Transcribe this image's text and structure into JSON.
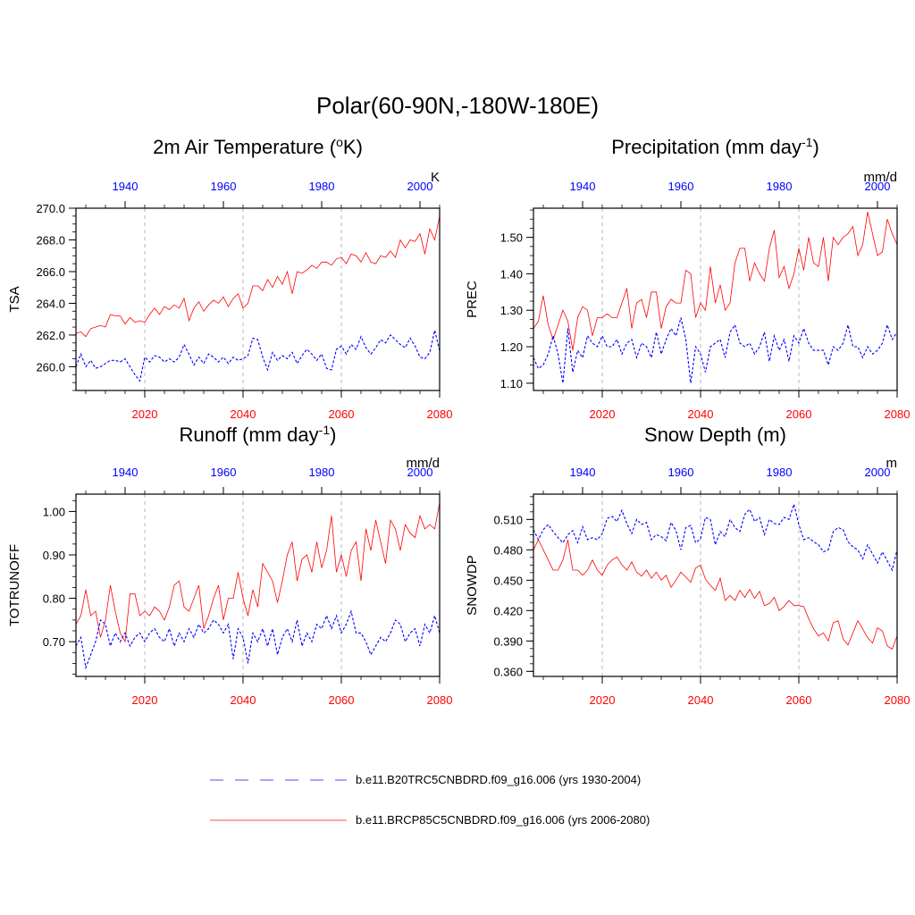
{
  "title": "Polar(60-90N,-180W-180E)",
  "colors": {
    "future": "#ff0000",
    "hist": "#0000ff",
    "grid": "#b4b4b4",
    "axis": "#000000"
  },
  "legend": [
    {
      "label": "b.e11.B20TRC5CNBDRD.f09_g16.006 (yrs 1930-2004)",
      "series": "hist"
    },
    {
      "label": "b.e11.BRCP85C5CNBDRD.f09_g16.006 (yrs 2006-2080)",
      "series": "future"
    }
  ],
  "chart_data": [
    {
      "type": "line",
      "title": "2m Air Temperature (°K)",
      "title_main": "2m Air Temperature (",
      "title_sup": "o",
      "title_end": "K)",
      "ylabel": "TSA",
      "units": "K",
      "ylim": [
        258.5,
        270.0
      ],
      "yticks": [
        260.0,
        262.0,
        264.0,
        266.0,
        268.0,
        270.0
      ],
      "ytick_labels": [
        "260.0",
        "262.0",
        "264.0",
        "266.0",
        "268.0",
        "270.0"
      ],
      "x_bottom_range": [
        2006,
        2080
      ],
      "x_bottom_ticks": [
        "2020",
        "2040",
        "2060",
        "2080"
      ],
      "x_top_range": [
        1930,
        2004
      ],
      "x_top_ticks": [
        "1940",
        "1960",
        "1980",
        "2000"
      ],
      "series": [
        {
          "name": "b.e11.BRCP85C5CNBDRD.f09_g16.006 (yrs 2006-2080)",
          "key": "future",
          "x_start": 2006,
          "values": [
            262.1,
            262.2,
            261.9,
            262.4,
            262.5,
            262.6,
            262.5,
            263.3,
            263.2,
            263.2,
            262.7,
            263.1,
            262.8,
            262.9,
            262.8,
            263.3,
            263.7,
            263.3,
            263.8,
            263.6,
            263.9,
            263.7,
            264.3,
            262.9,
            263.7,
            264.1,
            263.5,
            263.9,
            264.2,
            264.0,
            264.4,
            263.8,
            264.3,
            264.6,
            263.7,
            264.0,
            265.1,
            265.1,
            264.8,
            265.5,
            265.0,
            265.7,
            265.2,
            266.0,
            264.6,
            266.0,
            265.9,
            266.1,
            266.4,
            266.2,
            266.6,
            266.6,
            266.4,
            266.8,
            266.9,
            266.5,
            267.1,
            267.0,
            266.6,
            267.2,
            266.6,
            266.5,
            267.0,
            266.9,
            267.3,
            266.9,
            268.0,
            267.5,
            268.0,
            267.9,
            268.4,
            267.1,
            268.7,
            268.0,
            269.5
          ]
        },
        {
          "name": "b.e11.B20TRC5CNBDRD.f09_g16.006 (yrs 1930-2004)",
          "key": "hist",
          "x_start": 1930,
          "values": [
            260.0,
            260.8,
            260.0,
            260.4,
            259.9,
            260.0,
            260.2,
            260.4,
            260.4,
            260.3,
            260.5,
            260.0,
            259.5,
            259.1,
            260.6,
            260.3,
            260.7,
            260.6,
            260.3,
            260.5,
            260.3,
            260.6,
            261.4,
            260.8,
            260.1,
            260.6,
            260.2,
            260.8,
            260.6,
            260.3,
            260.6,
            260.2,
            260.6,
            260.4,
            260.5,
            260.7,
            261.8,
            261.7,
            260.6,
            259.8,
            260.9,
            260.4,
            260.7,
            260.5,
            260.9,
            260.2,
            260.7,
            261.1,
            260.8,
            260.4,
            260.8,
            259.9,
            259.8,
            261.1,
            261.3,
            260.8,
            261.4,
            261.1,
            261.9,
            261.2,
            260.8,
            261.2,
            261.7,
            261.5,
            262.0,
            261.7,
            261.4,
            261.2,
            261.8,
            261.3,
            260.6,
            260.5,
            260.9,
            262.3,
            261.0
          ]
        }
      ]
    },
    {
      "type": "line",
      "title": "Precipitation (mm day-1)",
      "title_main": "Precipitation (mm day",
      "title_sup": "-1",
      "title_end": ")",
      "ylabel": "PREC",
      "units": "mm/d",
      "ylim": [
        1.08,
        1.58
      ],
      "yticks": [
        1.1,
        1.2,
        1.3,
        1.4,
        1.5
      ],
      "ytick_labels": [
        "1.10",
        "1.20",
        "1.30",
        "1.40",
        "1.50"
      ],
      "x_bottom_range": [
        2006,
        2080
      ],
      "x_bottom_ticks": [
        "2020",
        "2040",
        "2060",
        "2080"
      ],
      "x_top_range": [
        1930,
        2004
      ],
      "x_top_ticks": [
        "1940",
        "1960",
        "1980",
        "2000"
      ],
      "series": [
        {
          "name": "b.e11.BRCP85C5CNBDRD.f09_g16.006 (yrs 2006-2080)",
          "key": "future",
          "x_start": 2006,
          "values": [
            1.25,
            1.27,
            1.34,
            1.26,
            1.22,
            1.26,
            1.3,
            1.27,
            1.19,
            1.28,
            1.31,
            1.3,
            1.23,
            1.28,
            1.28,
            1.29,
            1.28,
            1.28,
            1.32,
            1.36,
            1.25,
            1.32,
            1.33,
            1.28,
            1.35,
            1.35,
            1.25,
            1.31,
            1.33,
            1.32,
            1.32,
            1.41,
            1.4,
            1.28,
            1.32,
            1.3,
            1.42,
            1.32,
            1.37,
            1.3,
            1.32,
            1.43,
            1.47,
            1.47,
            1.38,
            1.43,
            1.4,
            1.38,
            1.47,
            1.52,
            1.39,
            1.42,
            1.36,
            1.4,
            1.47,
            1.41,
            1.5,
            1.43,
            1.42,
            1.5,
            1.38,
            1.5,
            1.48,
            1.5,
            1.51,
            1.53,
            1.45,
            1.48,
            1.57,
            1.51,
            1.45,
            1.46,
            1.55,
            1.51,
            1.48
          ]
        },
        {
          "name": "b.e11.B20TRC5CNBDRD.f09_g16.006 (yrs 1930-2004)",
          "key": "hist",
          "x_start": 1930,
          "values": [
            1.17,
            1.14,
            1.15,
            1.18,
            1.23,
            1.18,
            1.1,
            1.25,
            1.13,
            1.19,
            1.17,
            1.23,
            1.21,
            1.2,
            1.23,
            1.2,
            1.2,
            1.22,
            1.18,
            1.21,
            1.22,
            1.17,
            1.21,
            1.2,
            1.17,
            1.24,
            1.18,
            1.22,
            1.25,
            1.23,
            1.28,
            1.22,
            1.1,
            1.2,
            1.18,
            1.13,
            1.2,
            1.21,
            1.22,
            1.17,
            1.24,
            1.26,
            1.21,
            1.2,
            1.21,
            1.18,
            1.2,
            1.24,
            1.16,
            1.23,
            1.19,
            1.22,
            1.16,
            1.23,
            1.21,
            1.25,
            1.21,
            1.19,
            1.19,
            1.19,
            1.15,
            1.2,
            1.19,
            1.21,
            1.26,
            1.2,
            1.2,
            1.17,
            1.2,
            1.18,
            1.19,
            1.21,
            1.26,
            1.22,
            1.24
          ]
        }
      ]
    },
    {
      "type": "line",
      "title": "Runoff (mm day-1)",
      "title_main": "Runoff (mm day",
      "title_sup": "-1",
      "title_end": ")",
      "ylabel": "TOTRUNOFF",
      "units": "mm/d",
      "ylim": [
        0.62,
        1.04
      ],
      "yticks": [
        0.7,
        0.8,
        0.9,
        1.0
      ],
      "ytick_labels": [
        "0.70",
        "0.80",
        "0.90",
        "1.00"
      ],
      "x_bottom_range": [
        2006,
        2080
      ],
      "x_bottom_ticks": [
        "2020",
        "2040",
        "2060",
        "2080"
      ],
      "x_top_range": [
        1930,
        2004
      ],
      "x_top_ticks": [
        "1940",
        "1960",
        "1980",
        "2000"
      ],
      "series": [
        {
          "name": "b.e11.BRCP85C5CNBDRD.f09_g16.006 (yrs 2006-2080)",
          "key": "future",
          "x_start": 2006,
          "values": [
            0.74,
            0.76,
            0.82,
            0.76,
            0.77,
            0.71,
            0.75,
            0.83,
            0.77,
            0.72,
            0.7,
            0.81,
            0.81,
            0.76,
            0.77,
            0.76,
            0.78,
            0.77,
            0.75,
            0.78,
            0.83,
            0.84,
            0.78,
            0.77,
            0.8,
            0.83,
            0.73,
            0.76,
            0.8,
            0.83,
            0.75,
            0.8,
            0.8,
            0.86,
            0.8,
            0.76,
            0.82,
            0.78,
            0.88,
            0.86,
            0.84,
            0.79,
            0.84,
            0.9,
            0.93,
            0.84,
            0.89,
            0.9,
            0.86,
            0.93,
            0.87,
            0.91,
            0.99,
            0.86,
            0.9,
            0.85,
            0.91,
            0.93,
            0.84,
            0.96,
            0.91,
            0.98,
            0.93,
            0.88,
            0.98,
            0.96,
            0.91,
            0.97,
            0.95,
            0.94,
            0.99,
            0.96,
            0.97,
            0.96,
            1.02
          ]
        },
        {
          "name": "b.e11.B20TRC5CNBDRD.f09_g16.006 (yrs 1930-2004)",
          "key": "hist",
          "x_start": 1930,
          "values": [
            0.69,
            0.71,
            0.64,
            0.67,
            0.7,
            0.75,
            0.74,
            0.69,
            0.72,
            0.7,
            0.72,
            0.69,
            0.71,
            0.72,
            0.7,
            0.72,
            0.73,
            0.71,
            0.7,
            0.73,
            0.69,
            0.72,
            0.7,
            0.73,
            0.71,
            0.74,
            0.72,
            0.73,
            0.75,
            0.74,
            0.72,
            0.74,
            0.66,
            0.73,
            0.71,
            0.65,
            0.72,
            0.7,
            0.73,
            0.69,
            0.73,
            0.67,
            0.71,
            0.73,
            0.7,
            0.75,
            0.69,
            0.72,
            0.7,
            0.74,
            0.73,
            0.76,
            0.73,
            0.76,
            0.72,
            0.74,
            0.77,
            0.72,
            0.72,
            0.7,
            0.67,
            0.69,
            0.71,
            0.7,
            0.72,
            0.75,
            0.74,
            0.7,
            0.72,
            0.73,
            0.69,
            0.74,
            0.72,
            0.76,
            0.72
          ]
        }
      ]
    },
    {
      "type": "line",
      "title": "Snow Depth (m)",
      "title_main": "Snow Depth (m)",
      "title_sup": "",
      "title_end": "",
      "ylabel": "SNOWDP",
      "units": "m",
      "ylim": [
        0.355,
        0.535
      ],
      "yticks": [
        0.36,
        0.39,
        0.42,
        0.45,
        0.48,
        0.51
      ],
      "ytick_labels": [
        "0.360",
        "0.390",
        "0.420",
        "0.450",
        "0.480",
        "0.510"
      ],
      "x_bottom_range": [
        2006,
        2080
      ],
      "x_bottom_ticks": [
        "2020",
        "2040",
        "2060",
        "2080"
      ],
      "x_top_range": [
        1930,
        2004
      ],
      "x_top_ticks": [
        "1940",
        "1960",
        "1980",
        "2000"
      ],
      "series": [
        {
          "name": "b.e11.BRCP85C5CNBDRD.f09_g16.006 (yrs 2006-2080)",
          "key": "future",
          "x_start": 2006,
          "values": [
            0.48,
            0.49,
            0.48,
            0.47,
            0.46,
            0.46,
            0.47,
            0.49,
            0.46,
            0.46,
            0.455,
            0.46,
            0.47,
            0.46,
            0.455,
            0.465,
            0.47,
            0.473,
            0.465,
            0.46,
            0.468,
            0.458,
            0.454,
            0.46,
            0.452,
            0.458,
            0.45,
            0.455,
            0.443,
            0.45,
            0.458,
            0.453,
            0.448,
            0.462,
            0.465,
            0.451,
            0.445,
            0.44,
            0.452,
            0.43,
            0.435,
            0.43,
            0.44,
            0.433,
            0.441,
            0.432,
            0.439,
            0.425,
            0.427,
            0.433,
            0.42,
            0.424,
            0.43,
            0.425,
            0.425,
            0.424,
            0.412,
            0.402,
            0.395,
            0.398,
            0.39,
            0.408,
            0.41,
            0.392,
            0.386,
            0.398,
            0.41,
            0.402,
            0.393,
            0.388,
            0.403,
            0.4,
            0.385,
            0.382,
            0.395
          ]
        },
        {
          "name": "b.e11.B20TRC5CNBDRD.f09_g16.006 (yrs 1930-2004)",
          "key": "hist",
          "x_start": 1930,
          "values": [
            0.5,
            0.49,
            0.5,
            0.505,
            0.498,
            0.492,
            0.487,
            0.495,
            0.499,
            0.487,
            0.503,
            0.49,
            0.492,
            0.49,
            0.496,
            0.511,
            0.513,
            0.508,
            0.519,
            0.506,
            0.496,
            0.51,
            0.505,
            0.507,
            0.49,
            0.495,
            0.493,
            0.489,
            0.507,
            0.499,
            0.48,
            0.502,
            0.504,
            0.487,
            0.491,
            0.512,
            0.51,
            0.485,
            0.498,
            0.493,
            0.51,
            0.502,
            0.498,
            0.515,
            0.52,
            0.508,
            0.512,
            0.495,
            0.51,
            0.506,
            0.505,
            0.512,
            0.51,
            0.525,
            0.505,
            0.49,
            0.492,
            0.488,
            0.485,
            0.478,
            0.48,
            0.498,
            0.502,
            0.5,
            0.488,
            0.483,
            0.48,
            0.471,
            0.485,
            0.476,
            0.467,
            0.478,
            0.469,
            0.46,
            0.48
          ]
        }
      ]
    }
  ]
}
